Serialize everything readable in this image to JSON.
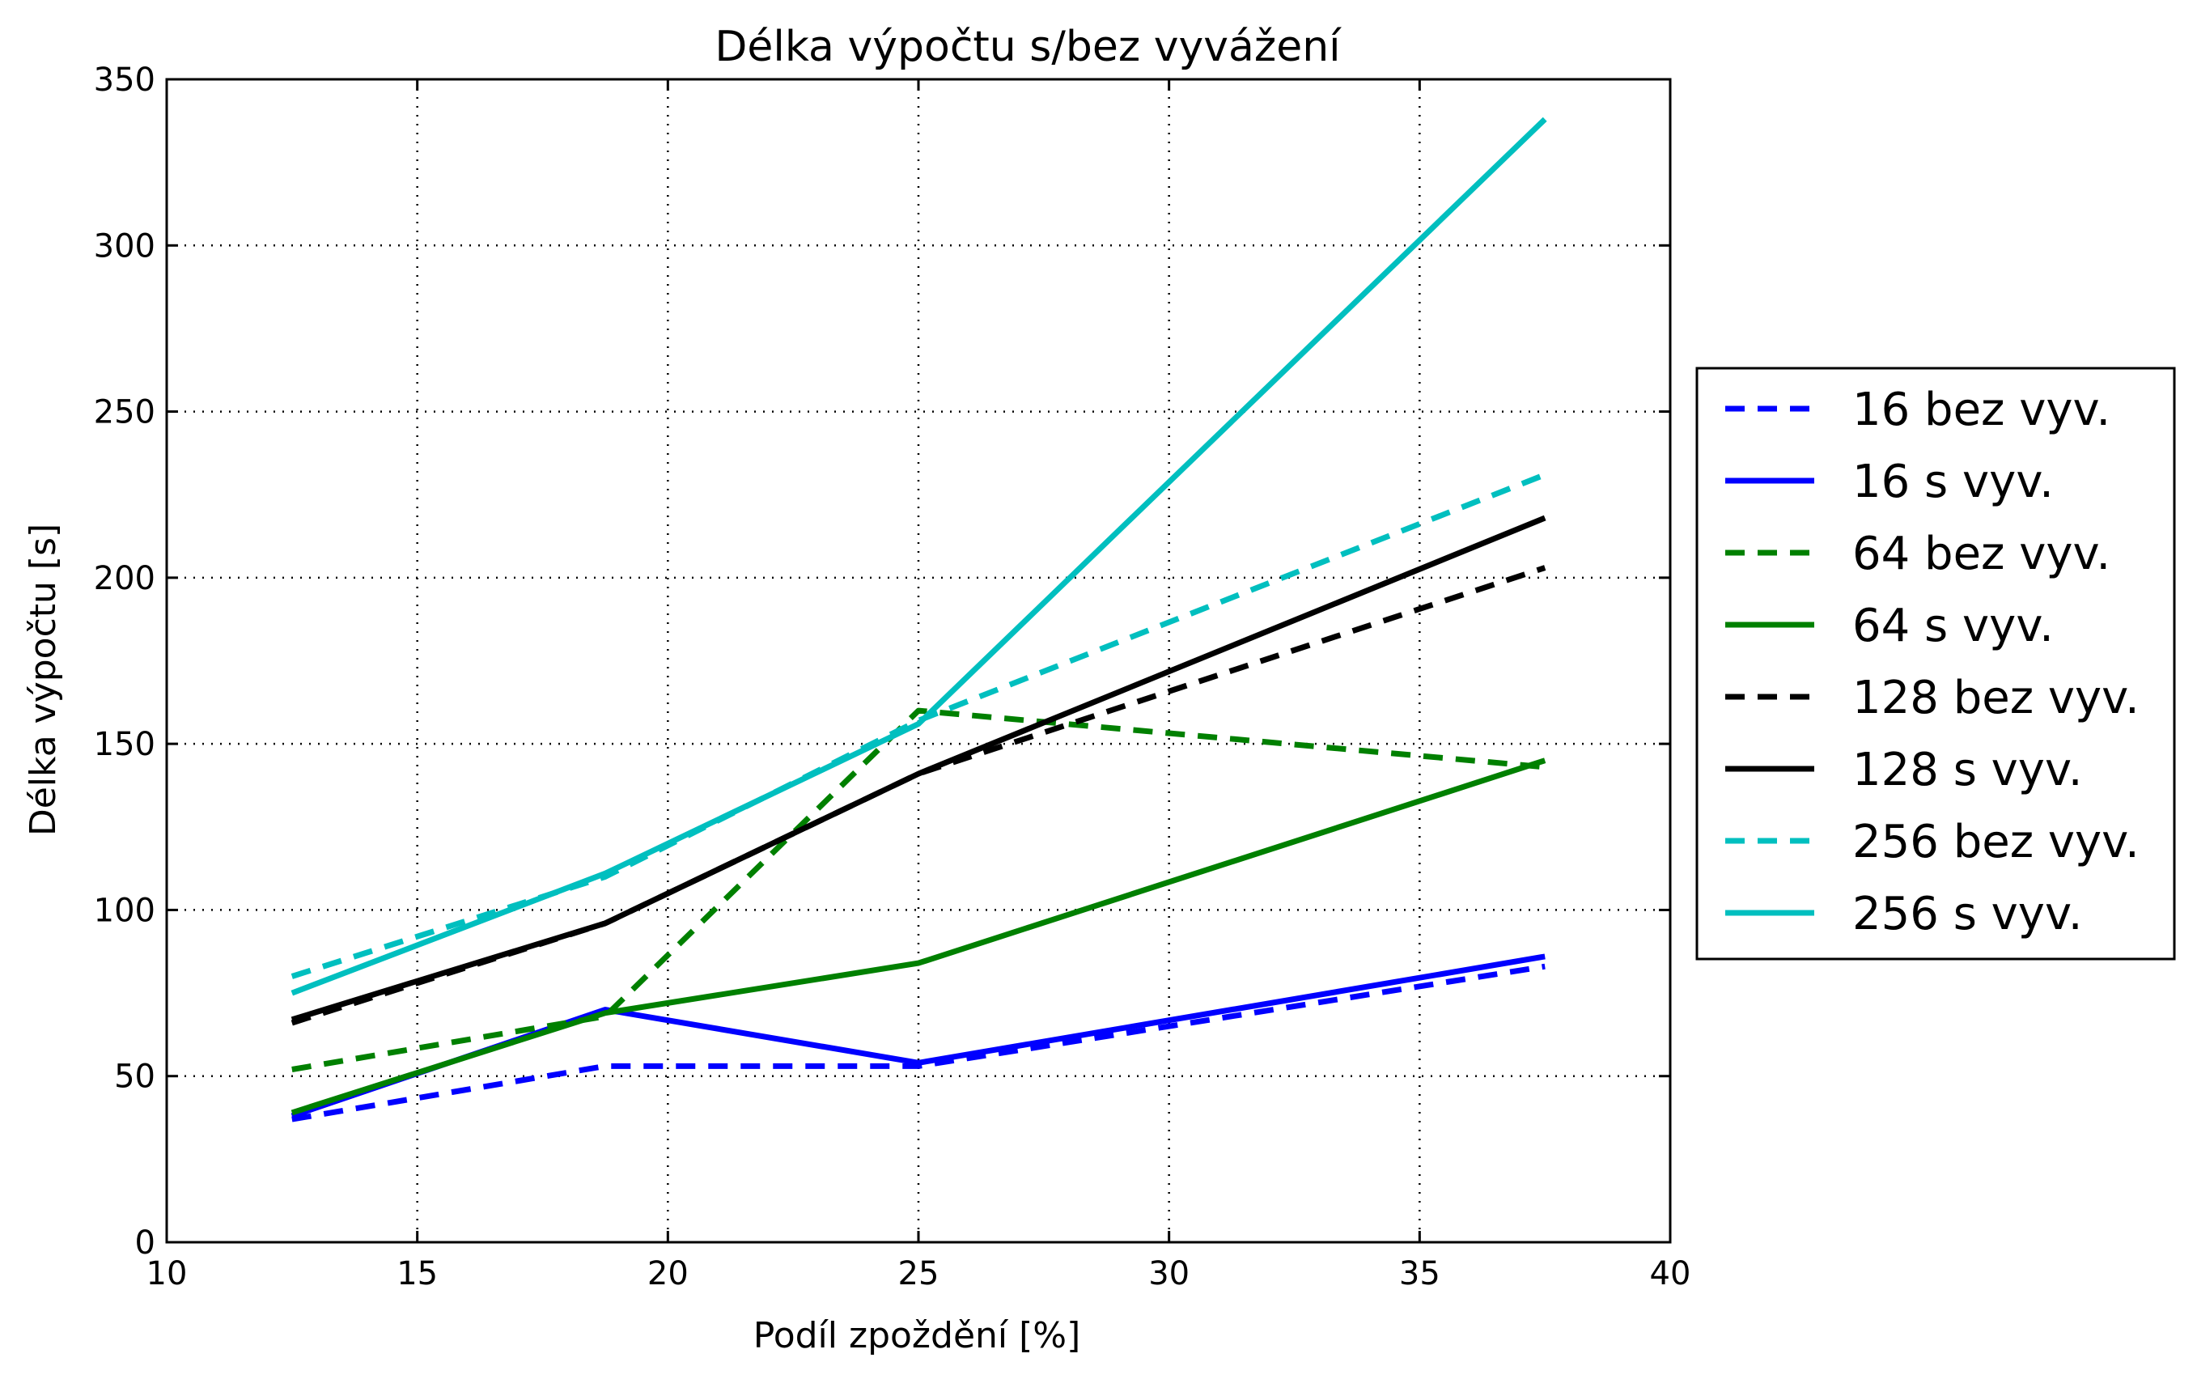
{
  "chart_data": {
    "type": "line",
    "title": "Délka výpočtu s/bez vyvážení",
    "xlabel": "Podíl zpoždění [%]",
    "ylabel": "Délka výpočtu [s]",
    "xlim": [
      10,
      40
    ],
    "ylim": [
      0,
      350
    ],
    "xticks": [
      10,
      15,
      20,
      25,
      30,
      35,
      40
    ],
    "yticks": [
      0,
      50,
      100,
      150,
      200,
      250,
      300,
      350
    ],
    "grid": true,
    "legend_position": "right outside",
    "series": [
      {
        "name": "16 bez vyv.",
        "color": "#0000ff",
        "dashed": true,
        "x": [
          12.5,
          18.75,
          25,
          37.5
        ],
        "y": [
          37,
          53,
          53,
          83
        ]
      },
      {
        "name": "16 s vyv.",
        "color": "#0000ff",
        "dashed": false,
        "x": [
          12.5,
          18.75,
          25,
          37.5
        ],
        "y": [
          38,
          70,
          54,
          86
        ]
      },
      {
        "name": "64 bez vyv.",
        "color": "#008000",
        "dashed": true,
        "x": [
          12.5,
          18.75,
          25,
          37.5
        ],
        "y": [
          52,
          68,
          160,
          143
        ]
      },
      {
        "name": "64 s vyv.",
        "color": "#008000",
        "dashed": false,
        "x": [
          12.5,
          18.75,
          25,
          37.5
        ],
        "y": [
          39,
          69,
          84,
          145
        ]
      },
      {
        "name": "128 bez vyv.",
        "color": "#000000",
        "dashed": true,
        "x": [
          12.5,
          18.75,
          25,
          37.5
        ],
        "y": [
          66,
          96,
          141,
          203
        ]
      },
      {
        "name": "128 s vyv.",
        "color": "#000000",
        "dashed": false,
        "x": [
          12.5,
          18.75,
          25,
          37.5
        ],
        "y": [
          67,
          96,
          141,
          218
        ]
      },
      {
        "name": "256 bez vyv.",
        "color": "#00bfbf",
        "dashed": true,
        "x": [
          12.5,
          18.75,
          25,
          37.5
        ],
        "y": [
          80,
          110,
          157,
          231
        ]
      },
      {
        "name": "256 s vyv.",
        "color": "#00bfbf",
        "dashed": false,
        "x": [
          12.5,
          18.75,
          25,
          37.5
        ],
        "y": [
          75,
          111,
          156,
          338
        ]
      }
    ]
  }
}
